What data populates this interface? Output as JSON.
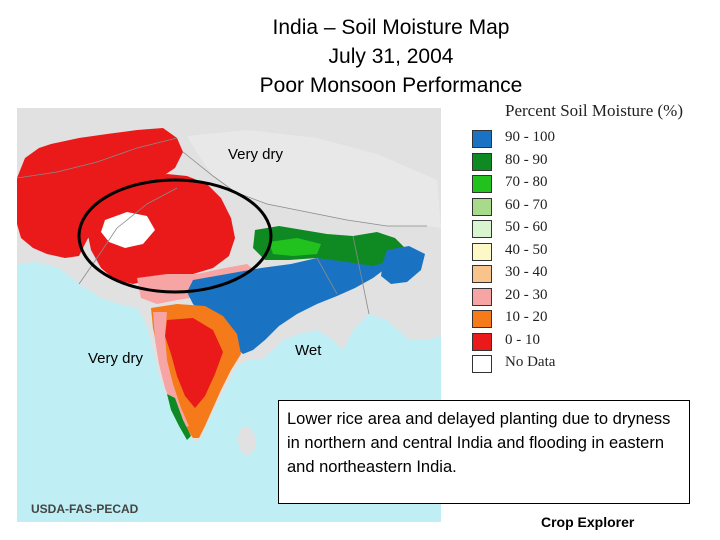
{
  "title": {
    "line1": "India – Soil Moisture Map",
    "line2": "July 31, 2004",
    "line3": "Poor Monsoon Performance"
  },
  "annotations": {
    "very_dry_north": "Very dry",
    "very_dry_west": "Very dry",
    "wet_east": "Wet"
  },
  "legend": {
    "title": "Percent Soil Moisture (%)",
    "items": [
      {
        "label": "90 - 100",
        "color": "#1a73c2"
      },
      {
        "label": "80 - 90",
        "color": "#0f8a22"
      },
      {
        "label": "70 - 80",
        "color": "#22c21e"
      },
      {
        "label": "60 - 70",
        "color": "#a8da8c"
      },
      {
        "label": "50 - 60",
        "color": "#d8f5cf"
      },
      {
        "label": "40 - 50",
        "color": "#fdf9c6"
      },
      {
        "label": "30 - 40",
        "color": "#f9c38c"
      },
      {
        "label": "20 - 30",
        "color": "#f7a4a4"
      },
      {
        "label": "10 - 20",
        "color": "#f47a1a"
      },
      {
        "label": "0 - 10",
        "color": "#ea1a1a"
      },
      {
        "label": "No Data",
        "color": "#ffffff"
      }
    ]
  },
  "note": "Lower rice area and delayed planting due to dryness in northern and central India and flooding in eastern and northeastern India.",
  "credit": "USDA-FAS-PECAD",
  "brand": "Crop Explorer",
  "colors": {
    "ocean": "#bfeff5",
    "land_outside": "#e1e1e1",
    "border_lines": "#8a8a8a",
    "highlight_ellipse": "#000000"
  }
}
